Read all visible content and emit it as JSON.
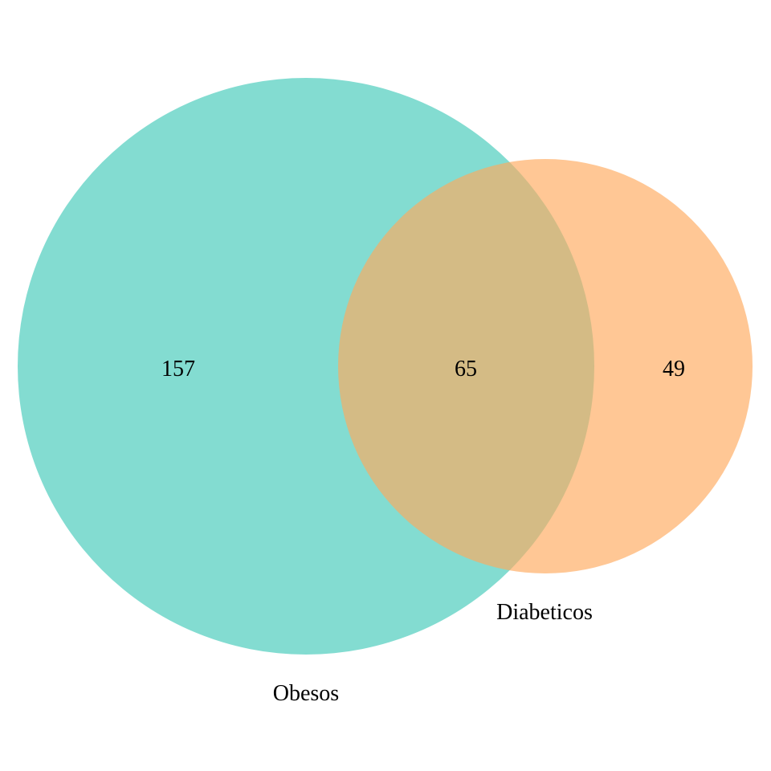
{
  "venn": {
    "sets": [
      {
        "name": "Obesos",
        "color": "#40C9B9"
      },
      {
        "name": "Diabeticos",
        "color": "#FFA95C"
      }
    ],
    "regions": {
      "obesos_only": "157",
      "intersection": "65",
      "diabeticos_only": "49"
    },
    "opacity": 0.65,
    "background": "#FFFFFF"
  }
}
